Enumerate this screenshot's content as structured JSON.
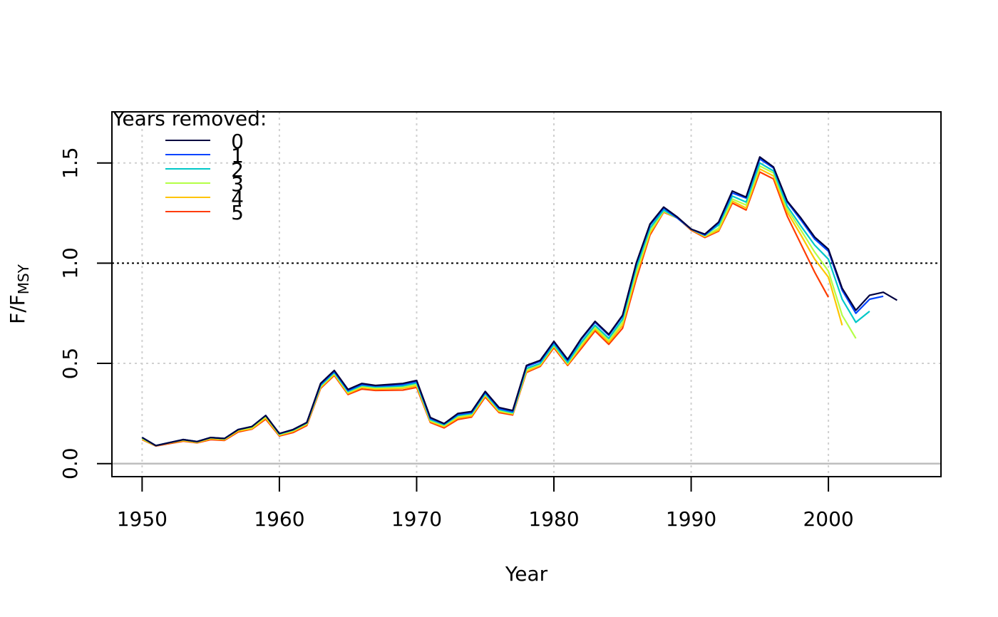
{
  "chart_data": {
    "type": "line",
    "xlabel": "Year",
    "ylabel": "F/F",
    "ylabel_subscript": "MSY",
    "xlim": [
      1947.8,
      2008.2
    ],
    "ylim": [
      -0.065,
      1.755
    ],
    "x_ticks": [
      1950,
      1960,
      1970,
      1980,
      1990,
      2000
    ],
    "x_tick_labels": [
      "1950",
      "1960",
      "1970",
      "1980",
      "1990",
      "2000"
    ],
    "y_ticks": [
      0,
      0.5,
      1,
      1.5
    ],
    "y_tick_labels": [
      "0.0",
      "0.5",
      "1.0",
      "1.5"
    ],
    "grid": true,
    "reference_line": 1.0,
    "zero_line": 0.0,
    "legend": {
      "title": "Years removed:",
      "position": "top-left",
      "entries": [
        "0",
        "1",
        "2",
        "3",
        "4",
        "5"
      ]
    },
    "series": [
      {
        "name": "0",
        "color": "#00003f",
        "x_start": 1950,
        "values": [
          0.13,
          0.09,
          0.105,
          0.12,
          0.11,
          0.13,
          0.125,
          0.17,
          0.185,
          0.24,
          0.15,
          0.17,
          0.205,
          0.4,
          0.465,
          0.37,
          0.4,
          0.39,
          0.395,
          0.4,
          0.415,
          0.23,
          0.2,
          0.25,
          0.26,
          0.36,
          0.28,
          0.265,
          0.49,
          0.515,
          0.61,
          0.52,
          0.625,
          0.71,
          0.645,
          0.74,
          1.0,
          1.195,
          1.28,
          1.23,
          1.17,
          1.145,
          1.205,
          1.36,
          1.33,
          1.53,
          1.48,
          1.31,
          1.225,
          1.13,
          1.07,
          0.875,
          0.765,
          0.84,
          0.855,
          0.815
        ]
      },
      {
        "name": "1",
        "color": "#0044ff",
        "x_start": 1950,
        "values": [
          0.13,
          0.09,
          0.105,
          0.12,
          0.11,
          0.13,
          0.125,
          0.17,
          0.185,
          0.24,
          0.15,
          0.17,
          0.205,
          0.395,
          0.46,
          0.365,
          0.395,
          0.388,
          0.39,
          0.395,
          0.41,
          0.225,
          0.198,
          0.245,
          0.255,
          0.355,
          0.275,
          0.26,
          0.485,
          0.51,
          0.605,
          0.515,
          0.62,
          0.705,
          0.64,
          0.735,
          0.995,
          1.19,
          1.275,
          1.225,
          1.17,
          1.14,
          1.2,
          1.35,
          1.325,
          1.52,
          1.475,
          1.305,
          1.215,
          1.12,
          1.06,
          0.865,
          0.75,
          0.82,
          0.835
        ]
      },
      {
        "name": "2",
        "color": "#00c8c8",
        "x_start": 1950,
        "values": [
          0.13,
          0.09,
          0.105,
          0.12,
          0.11,
          0.13,
          0.125,
          0.17,
          0.185,
          0.24,
          0.148,
          0.168,
          0.203,
          0.39,
          0.455,
          0.36,
          0.39,
          0.383,
          0.385,
          0.388,
          0.402,
          0.22,
          0.194,
          0.24,
          0.25,
          0.35,
          0.27,
          0.255,
          0.475,
          0.5,
          0.595,
          0.505,
          0.605,
          0.69,
          0.625,
          0.72,
          0.975,
          1.175,
          1.265,
          1.225,
          1.17,
          1.14,
          1.19,
          1.335,
          1.305,
          1.5,
          1.46,
          1.285,
          1.185,
          1.09,
          1.02,
          0.82,
          0.705,
          0.76
        ]
      },
      {
        "name": "3",
        "color": "#b4ff46",
        "x_start": 1950,
        "values": [
          0.125,
          0.09,
          0.105,
          0.118,
          0.108,
          0.128,
          0.122,
          0.168,
          0.18,
          0.235,
          0.145,
          0.165,
          0.2,
          0.385,
          0.45,
          0.355,
          0.385,
          0.378,
          0.38,
          0.382,
          0.395,
          0.215,
          0.19,
          0.235,
          0.245,
          0.345,
          0.265,
          0.25,
          0.47,
          0.495,
          0.59,
          0.5,
          0.595,
          0.68,
          0.615,
          0.705,
          0.955,
          1.16,
          1.26,
          1.225,
          1.17,
          1.135,
          1.175,
          1.32,
          1.29,
          1.485,
          1.45,
          1.27,
          1.165,
          1.055,
          0.96,
          0.74,
          0.625
        ]
      },
      {
        "name": "4",
        "color": "#ffc400",
        "x_start": 1950,
        "values": [
          0.122,
          0.089,
          0.103,
          0.115,
          0.106,
          0.124,
          0.12,
          0.163,
          0.175,
          0.228,
          0.142,
          0.161,
          0.196,
          0.38,
          0.445,
          0.35,
          0.38,
          0.372,
          0.374,
          0.376,
          0.388,
          0.21,
          0.185,
          0.228,
          0.238,
          0.34,
          0.26,
          0.248,
          0.46,
          0.49,
          0.585,
          0.495,
          0.585,
          0.672,
          0.605,
          0.69,
          0.94,
          1.15,
          1.258,
          1.225,
          1.168,
          1.133,
          1.165,
          1.31,
          1.275,
          1.47,
          1.435,
          1.255,
          1.14,
          1.02,
          0.93,
          0.69
        ]
      },
      {
        "name": "5",
        "color": "#ff3c00",
        "x_start": 1950,
        "values": [
          0.12,
          0.088,
          0.1,
          0.112,
          0.104,
          0.12,
          0.116,
          0.158,
          0.172,
          0.222,
          0.138,
          0.155,
          0.19,
          0.375,
          0.44,
          0.345,
          0.372,
          0.365,
          0.366,
          0.367,
          0.38,
          0.205,
          0.178,
          0.22,
          0.232,
          0.332,
          0.255,
          0.243,
          0.455,
          0.485,
          0.578,
          0.49,
          0.575,
          0.662,
          0.595,
          0.675,
          0.92,
          1.14,
          1.255,
          1.225,
          1.165,
          1.128,
          1.16,
          1.3,
          1.265,
          1.455,
          1.42,
          1.235,
          1.095,
          0.955,
          0.83
        ]
      }
    ]
  }
}
